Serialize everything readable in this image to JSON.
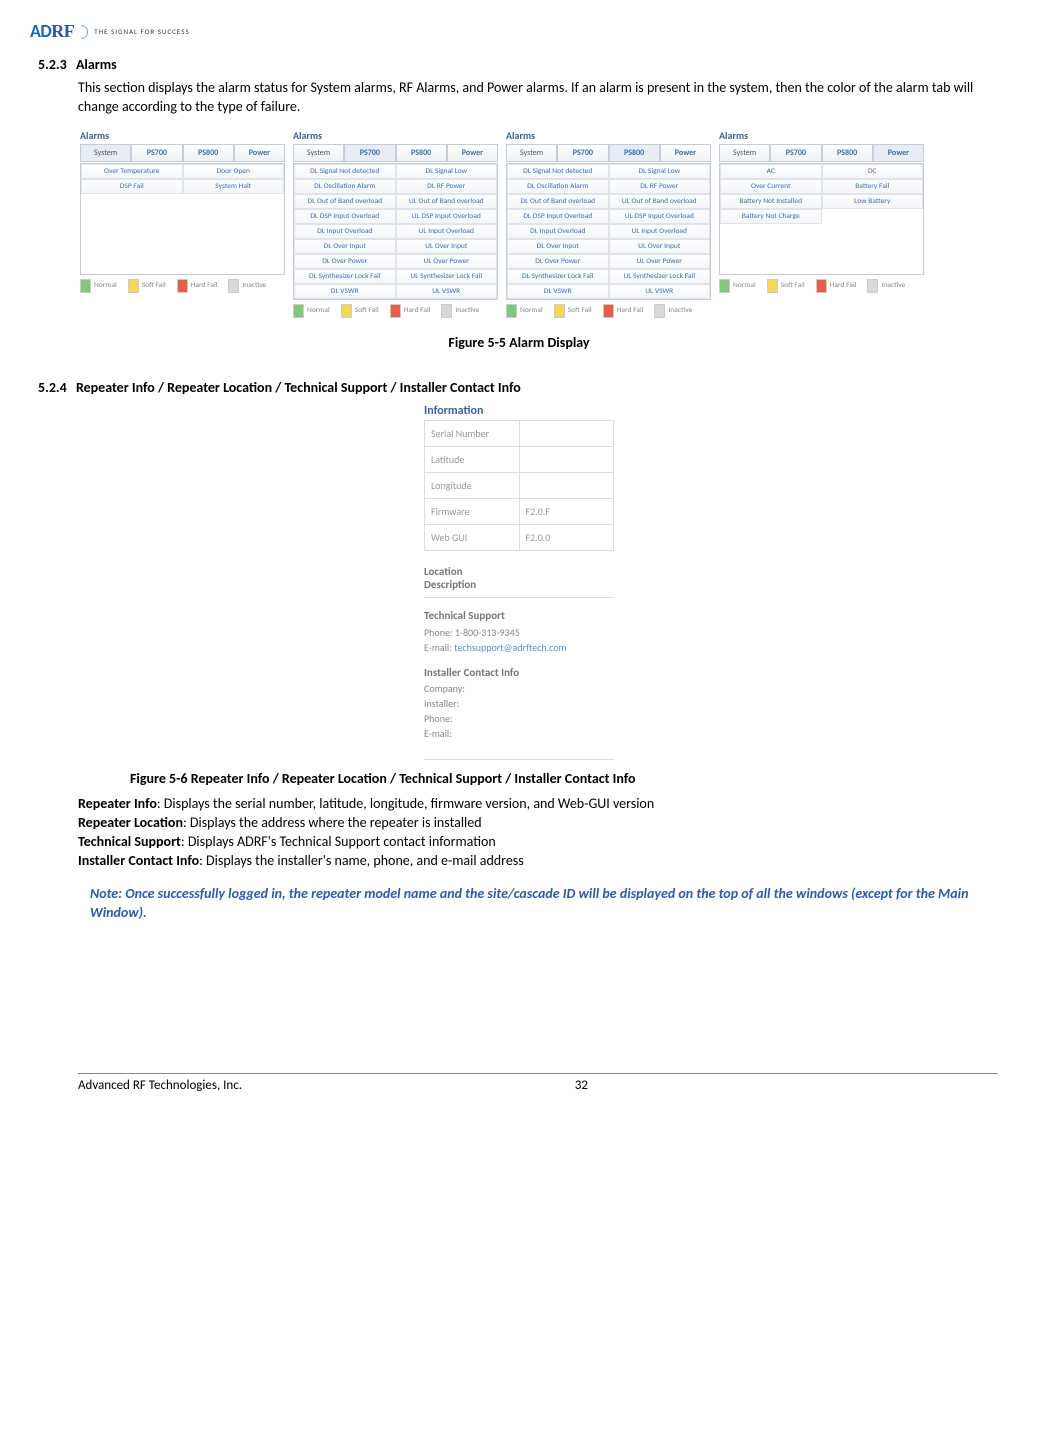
{
  "header": {
    "logo_parts": {
      "a": "A",
      "d": "D",
      "rf": "RF"
    },
    "tagline": "THE SIGNAL FOR SUCCESS"
  },
  "section_523": {
    "num": "5.2.3",
    "title": "Alarms",
    "text": "This section displays the alarm status for System alarms, RF Alarms, and Power alarms.  If an alarm is present in the system, then the color of the alarm tab will change according to the type of failure."
  },
  "alarm_tabs": [
    "System",
    "PS700",
    "PS800",
    "Power"
  ],
  "alarm_panel_title": "Alarms",
  "panelA": {
    "active_tab": 0,
    "rows": [
      [
        "Over Temperature",
        "Door Open"
      ],
      [
        "DSP Fail",
        "System Halt"
      ]
    ]
  },
  "panelB": {
    "active_tab": 1,
    "rows": [
      [
        "DL Signal Not detected",
        "DL Signal Low"
      ],
      [
        "DL Oscillation Alarm",
        "DL RF Power"
      ],
      [
        "DL Out of Band overload",
        "UL Out of Band overload"
      ],
      [
        "DL DSP Input Overload",
        "UL DSP Input Overload"
      ],
      [
        "DL Input Overload",
        "UL Input Overload"
      ],
      [
        "DL Over Input",
        "UL Over Input"
      ],
      [
        "DL Over Power",
        "UL Over Power"
      ],
      [
        "DL Synthesizer Lock Fail",
        "UL Synthesizer Lock Fail"
      ],
      [
        "DL VSWR",
        "UL VSWR"
      ]
    ]
  },
  "panelC": {
    "active_tab": 2,
    "rows": [
      [
        "DL Signal Not detected",
        "DL Signal Low"
      ],
      [
        "DL Oscillation Alarm",
        "DL RF Power"
      ],
      [
        "DL Out of Band overload",
        "UL Out of Band overload"
      ],
      [
        "DL DSP Input Overload",
        "UL DSP Input Overload"
      ],
      [
        "DL Input Overload",
        "UL Input Overload"
      ],
      [
        "DL Over Input",
        "UL Over Input"
      ],
      [
        "DL Over Power",
        "UL Over Power"
      ],
      [
        "DL Synthesizer Lock Fail",
        "UL Synthesizer Lock Fail"
      ],
      [
        "DL VSWR",
        "UL VSWR"
      ]
    ]
  },
  "panelD": {
    "active_tab": 3,
    "rows": [
      [
        "AC",
        "DC"
      ],
      [
        "Over Current",
        "Battery Fail"
      ],
      [
        "Battery Not Installed",
        "Low Battery"
      ],
      [
        "Battery Not Charge",
        ""
      ]
    ]
  },
  "legend": {
    "normal": "Normal",
    "soft": "Soft Fail",
    "hard": "Hard Fail",
    "inactive": "Inactive"
  },
  "fig55": "Figure 5-5     Alarm Display",
  "section_524": {
    "num": "5.2.4",
    "title": "Repeater Info / Repeater Location / Technical Support / Installer Contact Info"
  },
  "info": {
    "title": "Information",
    "rows": [
      [
        "Serial Number",
        ""
      ],
      [
        "Latitude",
        ""
      ],
      [
        "Longitude",
        ""
      ],
      [
        "Firmware",
        "F2.0.F"
      ],
      [
        "Web GUI",
        "F2.0.0"
      ]
    ],
    "location_title": "Location\nDescription",
    "tech_title": "Technical Support",
    "tech_phone": "Phone: 1-800-313-9345",
    "tech_email_label": "E-mail: ",
    "tech_email": "techsupport@adrftech.com",
    "installer_title": "Installer Contact Info",
    "installer_rows": [
      "Company:",
      "Installer:",
      "Phone:",
      "E-mail:"
    ]
  },
  "fig56": "Figure 5-6     Repeater Info / Repeater Location / Technical Support / Installer Contact Info",
  "descriptions": [
    {
      "bold": "Repeater Info",
      "rest": ": Displays the serial number, latitude, longitude, firmware version, and Web-GUI version"
    },
    {
      "bold": "Repeater Location",
      "rest": ": Displays the address where the repeater is installed"
    },
    {
      "bold": "Technical Support",
      "rest": ": Displays ADRF's Technical Support contact information"
    },
    {
      "bold": "Installer Contact Info",
      "rest": ": Displays the installer's name, phone, and e-mail address"
    }
  ],
  "note": "Note: Once successfully logged in, the repeater model name and the site/cascade ID will be displayed on the top of all the windows (except for the Main Window).",
  "footer": {
    "company": "Advanced RF Technologies, Inc.",
    "page": "32"
  }
}
